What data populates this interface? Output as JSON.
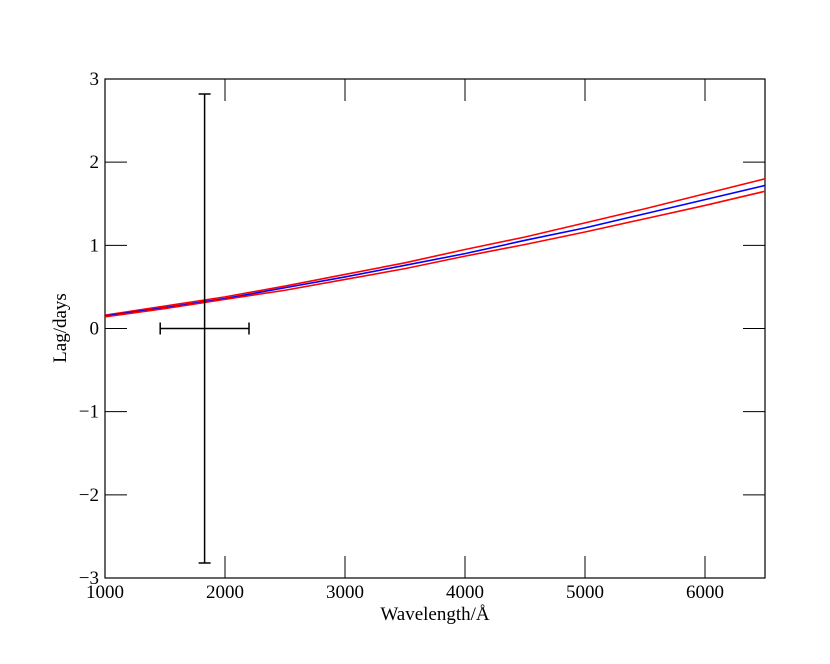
{
  "chart_data": {
    "type": "line",
    "xlabel": "Wavelength/Å",
    "ylabel": "Lag/days",
    "x": [
      1000,
      1500,
      2000,
      2500,
      3000,
      3500,
      4000,
      4500,
      5000,
      5500,
      6000,
      6500
    ],
    "series": [
      {
        "color": "#ff0000",
        "values": [
          0.16,
          0.27,
          0.38,
          0.51,
          0.65,
          0.79,
          0.95,
          1.1,
          1.27,
          1.44,
          1.62,
          1.8
        ]
      },
      {
        "color": "#0000ff",
        "values": [
          0.15,
          0.25,
          0.36,
          0.49,
          0.62,
          0.76,
          0.9,
          1.06,
          1.21,
          1.38,
          1.55,
          1.72
        ]
      },
      {
        "color": "#ff0000",
        "values": [
          0.14,
          0.24,
          0.35,
          0.46,
          0.59,
          0.72,
          0.87,
          1.01,
          1.16,
          1.32,
          1.48,
          1.65
        ]
      }
    ],
    "errorbars": {
      "color": "#000000",
      "x": [
        1830
      ],
      "y": [
        0
      ],
      "xerr": [
        370
      ],
      "yerr": [
        2.82
      ]
    },
    "xlim": [
      1000,
      6500
    ],
    "ylim": [
      -3,
      3
    ],
    "xticks": [
      1000,
      2000,
      3000,
      4000,
      5000,
      6000
    ],
    "yticks": [
      {
        "value": -3,
        "label": "−3"
      },
      {
        "value": -2,
        "label": "−2"
      },
      {
        "value": -1,
        "label": "−1"
      },
      0,
      1,
      2,
      3
    ]
  }
}
